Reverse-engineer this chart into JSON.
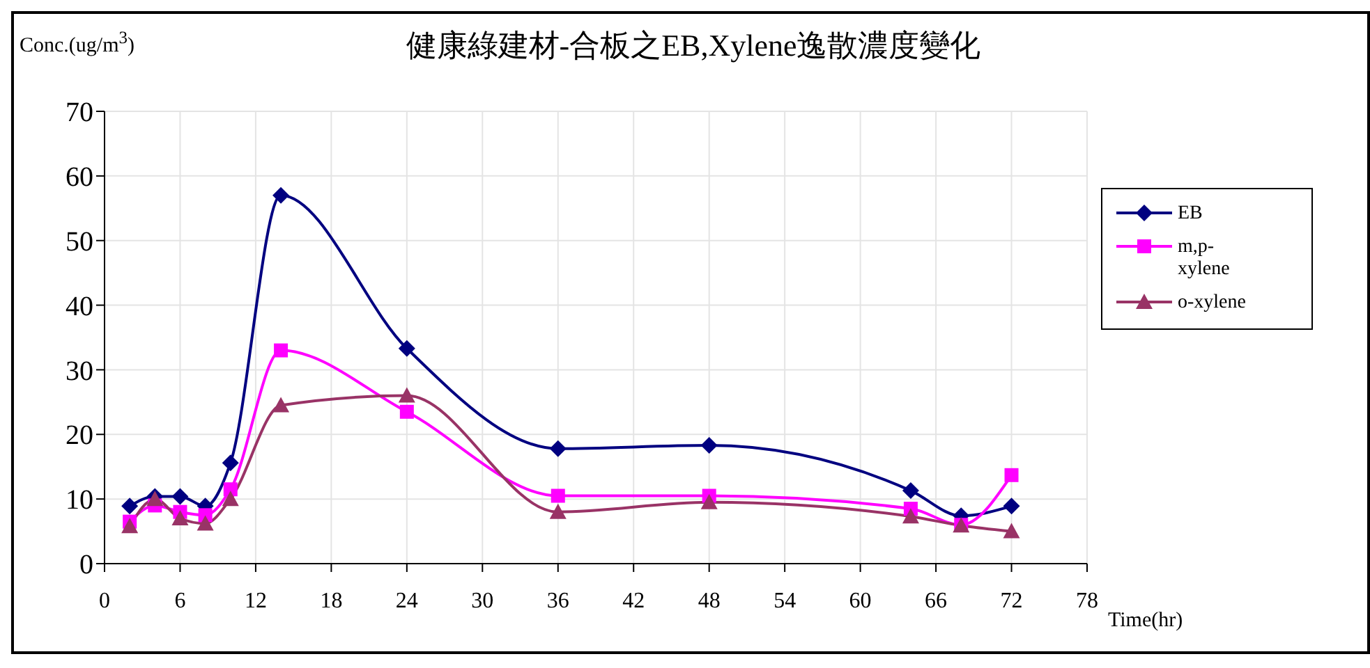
{
  "chart_data": {
    "type": "line",
    "title": "健康綠建材-合板之EB,Xylene逸散濃度變化",
    "xlabel": "Time(hr)",
    "ylabel": "Conc.(ug/m$^{3}$)",
    "x": [
      2,
      4,
      6,
      8,
      10,
      14,
      24,
      36,
      48,
      64,
      68,
      72
    ],
    "series": [
      {
        "name": "EB",
        "color": "#000080",
        "marker": "diamond",
        "values": [
          8.9,
          10.4,
          10.4,
          8.9,
          15.6,
          57,
          33.3,
          17.8,
          18.3,
          11.3,
          7.4,
          8.9
        ]
      },
      {
        "name": "m,p-xylene",
        "color": "#ff00ff",
        "marker": "square",
        "values": [
          6.5,
          9,
          8,
          7.5,
          11.5,
          33,
          23.5,
          10.5,
          10.5,
          8.5,
          6,
          13.7
        ]
      },
      {
        "name": "o-xylene",
        "color": "#993366",
        "marker": "triangle",
        "values": [
          5.8,
          10,
          7,
          6.2,
          10,
          24.5,
          26,
          8,
          9.5,
          7.3,
          5.9,
          5
        ]
      }
    ],
    "xlim": [
      0,
      78
    ],
    "xticks": [
      0,
      6,
      12,
      18,
      24,
      30,
      36,
      42,
      48,
      54,
      60,
      66,
      72,
      78
    ],
    "ylim": [
      0,
      70
    ],
    "yticks": [
      0,
      10,
      20,
      30,
      40,
      50,
      60,
      70
    ],
    "grid": true,
    "legend": "right",
    "line_style": "solid"
  }
}
